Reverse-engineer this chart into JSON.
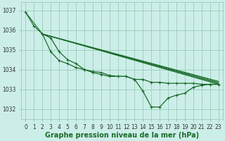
{
  "background_color": "#cceee8",
  "grid_color": "#99ccbb",
  "line_color": "#1a6b2a",
  "xlim": [
    -0.5,
    23.5
  ],
  "ylim": [
    1031.5,
    1037.4
  ],
  "yticks": [
    1032,
    1033,
    1034,
    1035,
    1036,
    1037
  ],
  "xticks": [
    0,
    1,
    2,
    3,
    4,
    5,
    6,
    7,
    8,
    9,
    10,
    11,
    12,
    13,
    14,
    15,
    16,
    17,
    18,
    19,
    20,
    21,
    22,
    23
  ],
  "lines": [
    {
      "x": [
        0,
        2,
        23
      ],
      "y": [
        1036.9,
        1035.8,
        1033.25
      ]
    },
    {
      "x": [
        2,
        23
      ],
      "y": [
        1035.8,
        1033.3
      ]
    },
    {
      "x": [
        2,
        23
      ],
      "y": [
        1035.8,
        1033.35
      ]
    },
    {
      "x": [
        2,
        23
      ],
      "y": [
        1035.8,
        1033.4
      ]
    },
    {
      "x": [
        0,
        1,
        2,
        3,
        4,
        5,
        6,
        7,
        8,
        9,
        10,
        11,
        12,
        13,
        14,
        15,
        16,
        17,
        18,
        19,
        20,
        21,
        22,
        23
      ],
      "y": [
        1036.9,
        1036.2,
        1035.8,
        1034.9,
        1034.45,
        1034.3,
        1034.1,
        1034.0,
        1033.85,
        1033.75,
        1033.65,
        1033.65,
        1033.65,
        1033.5,
        1032.9,
        1032.1,
        1032.1,
        1032.55,
        1032.7,
        1032.8,
        1033.1,
        1033.2,
        1033.25,
        1033.25
      ]
    },
    {
      "x": [
        2,
        3,
        4,
        5,
        6,
        7,
        8,
        9,
        10,
        11,
        12,
        13,
        14,
        15,
        16,
        17,
        18,
        19,
        20,
        21,
        22,
        23
      ],
      "y": [
        1035.8,
        1035.6,
        1034.9,
        1034.5,
        1034.3,
        1034.0,
        1033.9,
        1033.85,
        1033.7,
        1033.65,
        1033.65,
        1033.5,
        1033.5,
        1033.35,
        1033.35,
        1033.3,
        1033.3,
        1033.3,
        1033.3,
        1033.25,
        1033.25,
        1033.25
      ]
    }
  ],
  "xlabel": "Graphe pression niveau de la mer (hPa)",
  "xlabel_fontsize": 7,
  "tick_fontsize": 5.5
}
